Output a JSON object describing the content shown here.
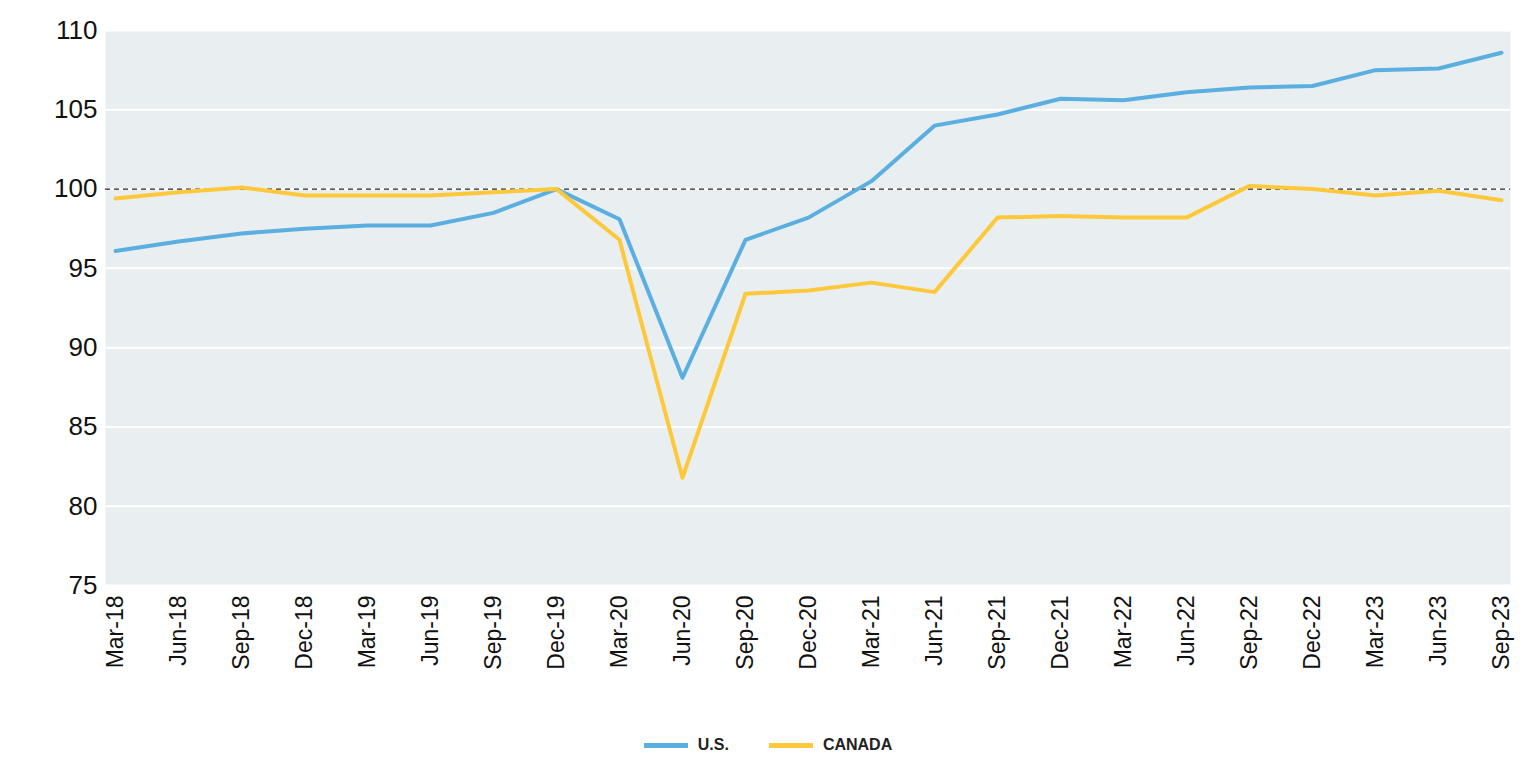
{
  "chart_data": {
    "type": "line",
    "x": [
      "Mar-18",
      "Jun-18",
      "Sep-18",
      "Dec-18",
      "Mar-19",
      "Jun-19",
      "Sep-19",
      "Dec-19",
      "Mar-20",
      "Jun-20",
      "Sep-20",
      "Dec-20",
      "Mar-21",
      "Jun-21",
      "Sep-21",
      "Dec-21",
      "Mar-22",
      "Jun-22",
      "Sep-22",
      "Dec-22",
      "Mar-23",
      "Jun-23",
      "Sep-23"
    ],
    "series": [
      {
        "name": "U.S.",
        "color": "#5aafe0",
        "values": [
          96.1,
          96.7,
          97.2,
          97.5,
          97.7,
          97.7,
          98.5,
          100.0,
          98.1,
          88.1,
          96.8,
          98.2,
          100.5,
          104.0,
          104.7,
          105.7,
          105.6,
          106.1,
          106.4,
          106.5,
          107.5,
          107.6,
          108.6
        ]
      },
      {
        "name": "CANADA",
        "color": "#fdc93b",
        "values": [
          99.4,
          99.8,
          100.1,
          99.6,
          99.6,
          99.6,
          99.8,
          100.0,
          96.8,
          81.8,
          93.4,
          93.6,
          94.1,
          93.5,
          98.2,
          98.3,
          98.2,
          98.2,
          100.2,
          100.0,
          99.6,
          99.9,
          99.3
        ]
      }
    ],
    "ylim": [
      75,
      110
    ],
    "yticks": [
      75,
      80,
      85,
      90,
      95,
      100,
      105,
      110
    ],
    "reference_line": 100,
    "grid": true,
    "legend": "bottom"
  }
}
